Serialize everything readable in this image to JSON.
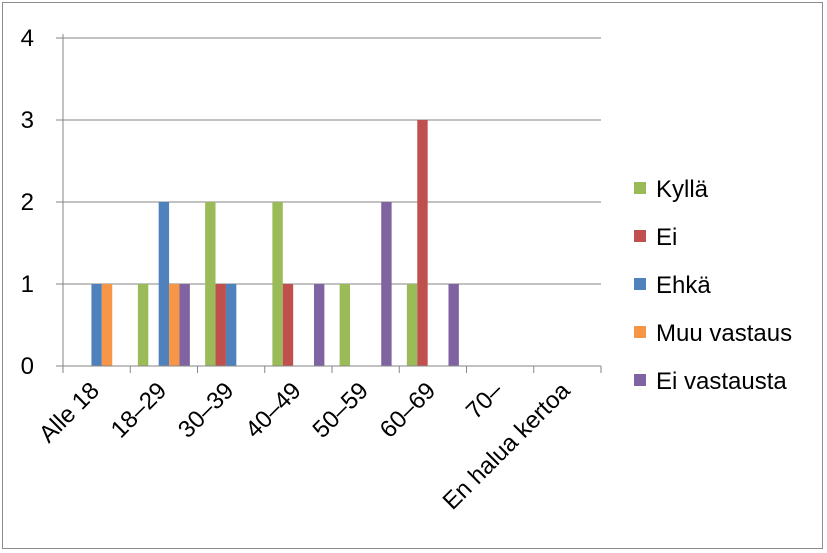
{
  "chart_data": {
    "type": "bar",
    "title": "",
    "xlabel": "",
    "ylabel": "",
    "ylim": [
      0,
      4
    ],
    "yticks": [
      "0",
      "1",
      "2",
      "3",
      "4"
    ],
    "grid": "horizontal",
    "legend_position": "right",
    "categories": [
      "Alle 18",
      "18–29",
      "30–39",
      "40–49",
      "50–59",
      "60–69",
      "70–",
      "En halua kertoa"
    ],
    "series": [
      {
        "name": "Kyllä",
        "color": "#9bbb59",
        "values": [
          0,
          1,
          2,
          2,
          1,
          1,
          0,
          0
        ]
      },
      {
        "name": "Ei",
        "color": "#c0504d",
        "values": [
          0,
          0,
          1,
          1,
          0,
          3,
          0,
          0
        ]
      },
      {
        "name": "Ehkä",
        "color": "#4f81bd",
        "values": [
          1,
          2,
          1,
          0,
          0,
          0,
          0,
          0
        ]
      },
      {
        "name": "Muu vastaus",
        "color": "#f79646",
        "values": [
          1,
          1,
          0,
          0,
          0,
          0,
          0,
          0
        ]
      },
      {
        "name": "Ei vastausta",
        "color": "#8064a2",
        "values": [
          0,
          1,
          0,
          1,
          2,
          1,
          0,
          0
        ]
      }
    ]
  }
}
